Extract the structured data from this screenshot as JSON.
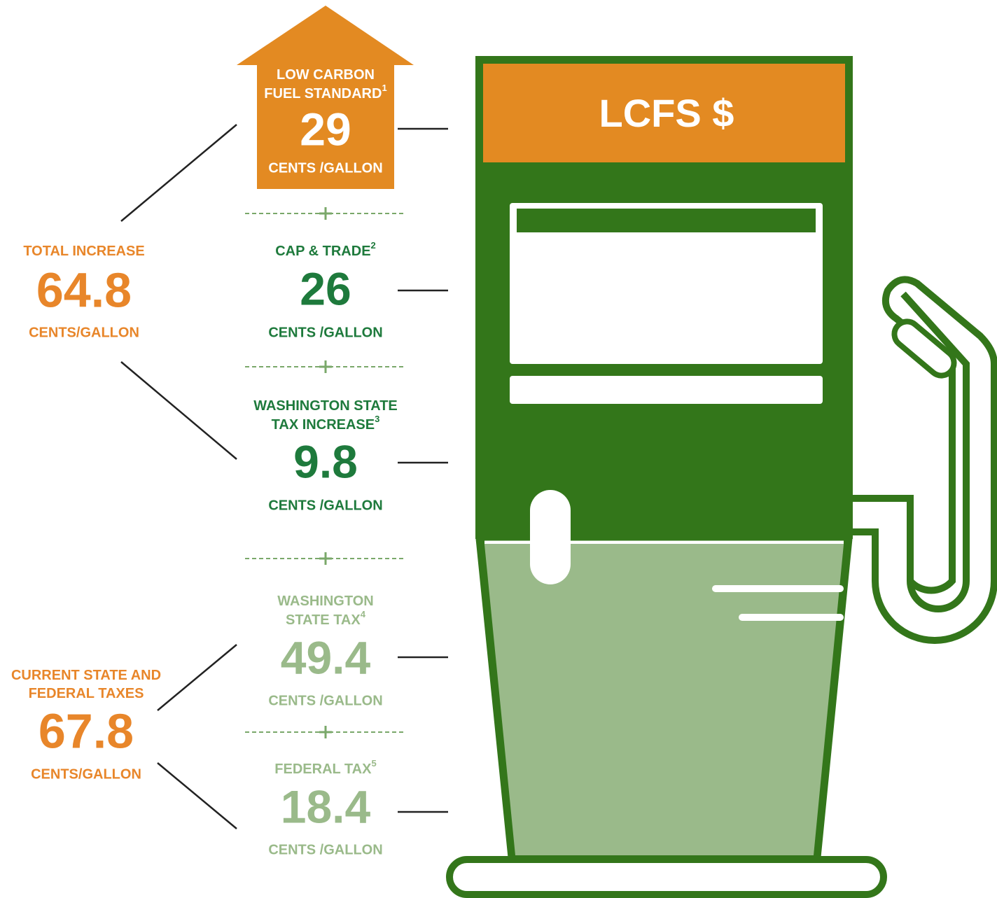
{
  "pump_label": "LCFS $",
  "items": [
    {
      "title": [
        "LOW CARBON",
        "FUEL STANDARD"
      ],
      "note": 1,
      "value": 29,
      "unit": "CENTS /GALLON"
    },
    {
      "title": [
        "CAP & TRADE"
      ],
      "note": 2,
      "value": 26,
      "unit": "CENTS /GALLON"
    },
    {
      "title": [
        "WASHINGTON STATE",
        "TAX INCREASE"
      ],
      "note": 3,
      "value": 9.8,
      "unit": "CENTS /GALLON"
    },
    {
      "title": [
        "WASHINGTON",
        "STATE TAX"
      ],
      "note": 4,
      "value": 49.4,
      "unit": "CENTS /GALLON"
    },
    {
      "title": [
        "FEDERAL TAX"
      ],
      "note": 5,
      "value": 18.4,
      "unit": "CENTS /GALLON"
    }
  ],
  "totals": [
    {
      "title": [
        "TOTAL INCREASE"
      ],
      "value": 64.8,
      "unit": "CENTS/GALLON"
    },
    {
      "title": [
        "CURRENT STATE AND",
        "FEDERAL TAXES"
      ],
      "value": 67.8,
      "unit": "CENTS/GALLON"
    }
  ]
}
